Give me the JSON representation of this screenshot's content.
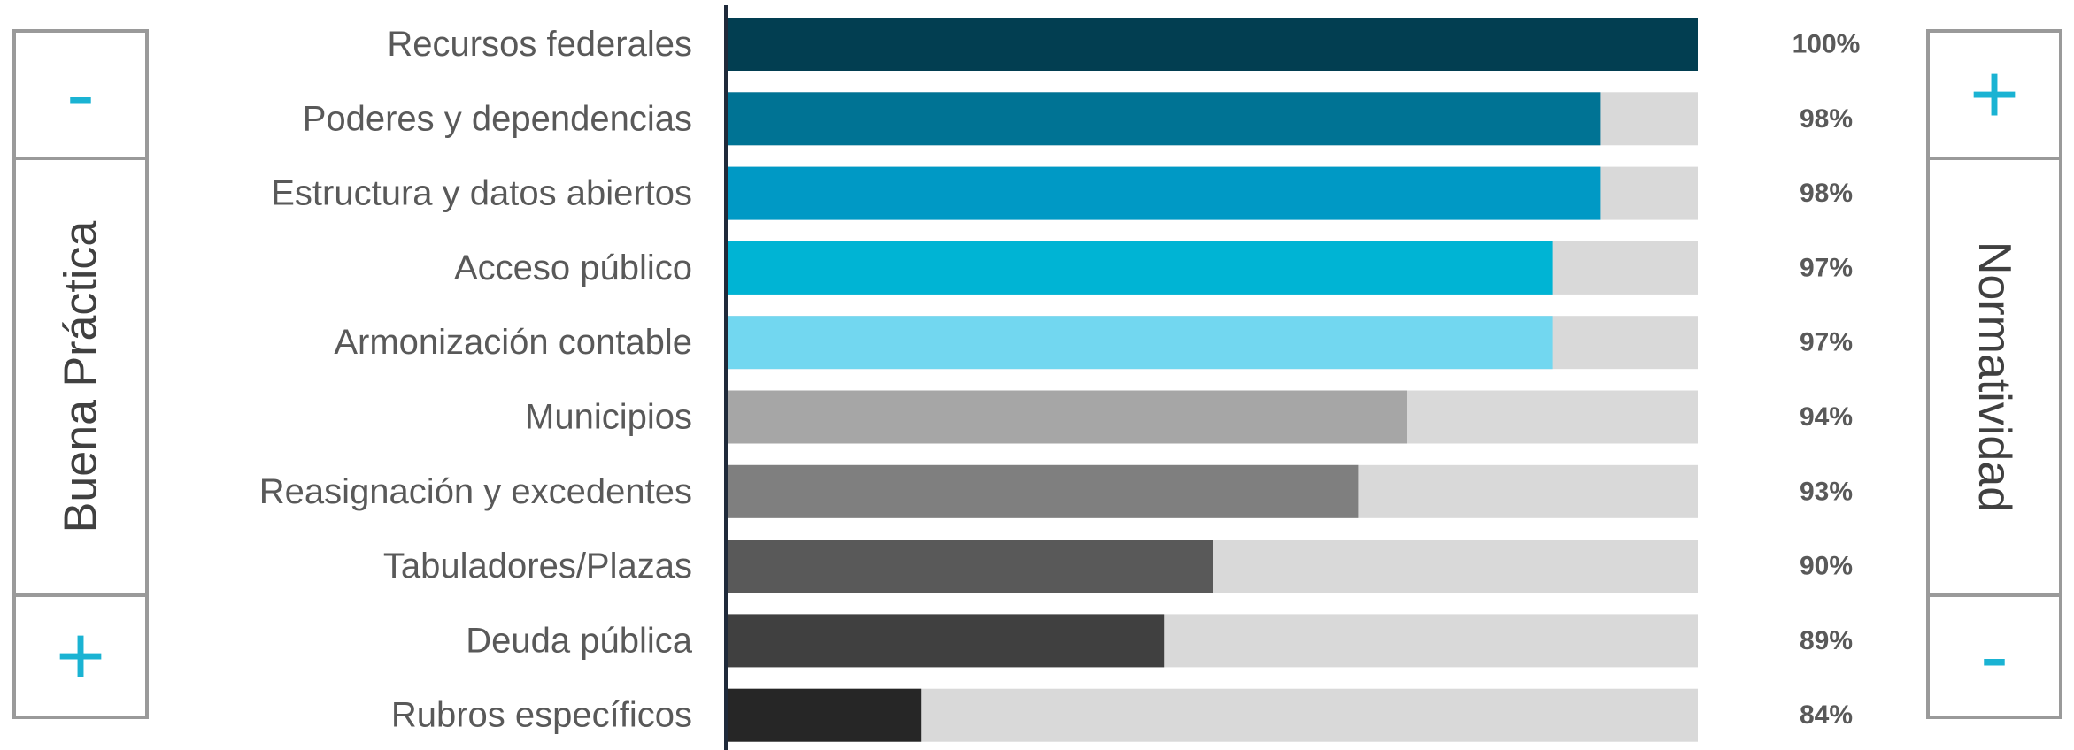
{
  "left_panel": {
    "top_sign": "-",
    "label": "Buena Práctica",
    "bottom_sign": "+"
  },
  "right_panel": {
    "top_sign": "+",
    "label": "Normatividad",
    "bottom_sign": "-"
  },
  "colors": {
    "accent": "#1ab3d3",
    "track": "#d9d9d9",
    "axis": "#1f2a3a",
    "bars": [
      "#023e51",
      "#007394",
      "#0099c5",
      "#00b4d4",
      "#72d7f0",
      "#a6a6a6",
      "#7f7f7f",
      "#595959",
      "#404040",
      "#262626"
    ]
  },
  "chart_data": {
    "type": "bar",
    "orientation": "horizontal",
    "categories": [
      "Recursos federales",
      "Poderes y dependencias",
      "Estructura y datos abiertos",
      "Acceso público",
      "Armonización contable",
      "Municipios",
      "Reasignación y excedentes",
      "Tabuladores/Plazas",
      "Deuda pública",
      "Rubros específicos"
    ],
    "values": [
      100,
      98,
      98,
      97,
      97,
      94,
      93,
      90,
      89,
      84
    ],
    "value_labels": [
      "100%",
      "98%",
      "98%",
      "97%",
      "97%",
      "94%",
      "93%",
      "90%",
      "89%",
      "84%"
    ],
    "xlim": [
      80,
      100
    ],
    "title": "",
    "xlabel": "",
    "ylabel": "",
    "grid": false,
    "legend": "none"
  }
}
